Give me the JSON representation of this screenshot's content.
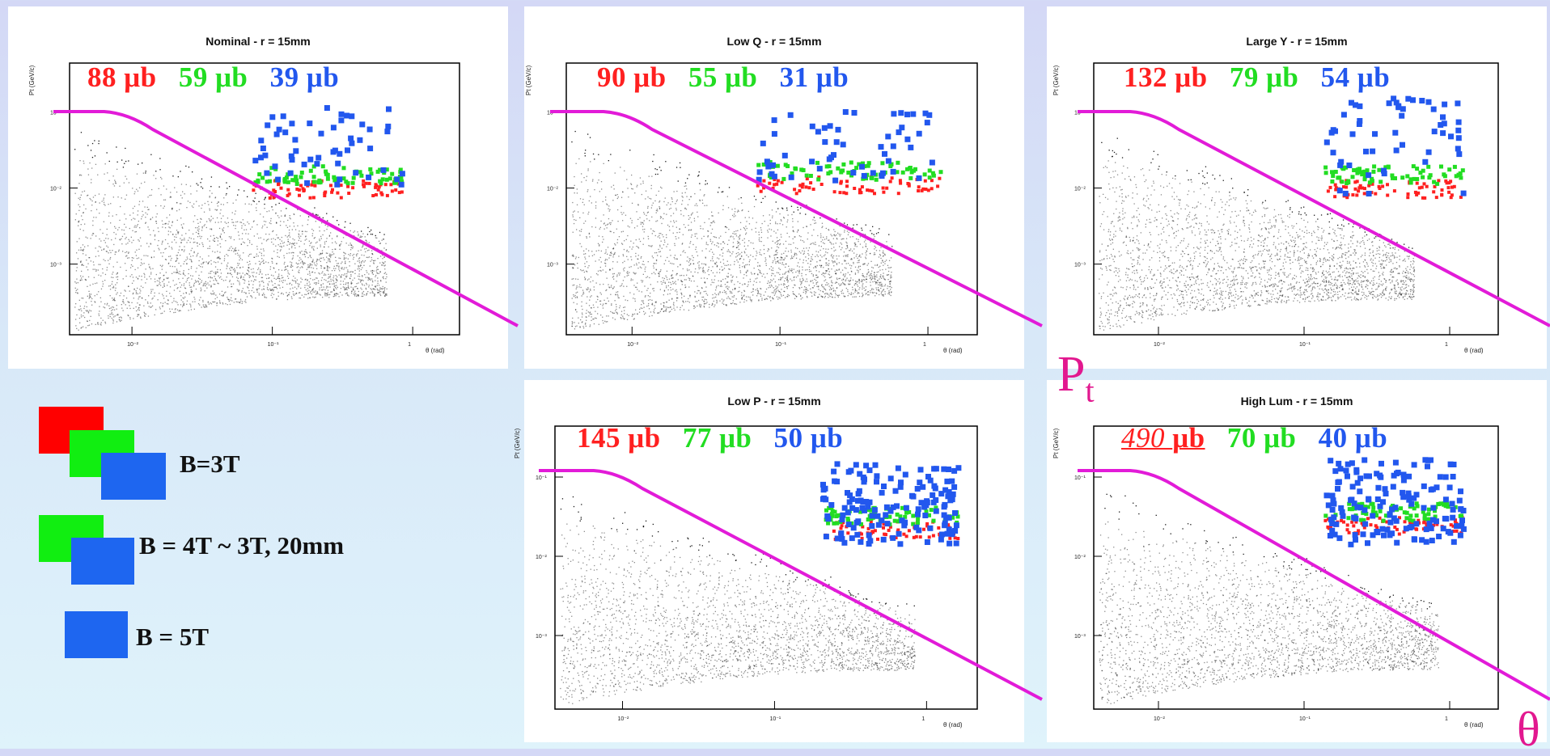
{
  "colors": {
    "red": "#ff2020",
    "green": "#22dd22",
    "blue": "#2257ee",
    "magenta": "#e21bd8",
    "label_magenta": "#e2188f"
  },
  "chart_data": [
    {
      "type": "scatter",
      "title": "Nominal - r = 15mm",
      "xlabel": "θ (rad)",
      "ylabel": "Pt (GeV/c)",
      "log_x": true,
      "log_y": true,
      "cross_sections": {
        "red": "88",
        "green": "59",
        "blue": "39",
        "unit": "μb"
      }
    },
    {
      "type": "scatter",
      "title": "Low Q - r = 15mm",
      "xlabel": "θ (rad)",
      "ylabel": "Pt (GeV/c)",
      "log_x": true,
      "log_y": true,
      "cross_sections": {
        "red": "90",
        "green": "55",
        "blue": "31",
        "unit": "μb"
      }
    },
    {
      "type": "scatter",
      "title": "Large Y - r = 15mm",
      "xlabel": "θ (rad)",
      "ylabel": "Pt (GeV/c)",
      "log_x": true,
      "log_y": true,
      "cross_sections": {
        "red": "132",
        "green": "79",
        "blue": "54",
        "unit": "μb"
      }
    },
    {
      "type": "scatter",
      "title": "Low P - r = 15mm",
      "xlabel": "θ (rad)",
      "ylabel": "Pt (GeV/c)",
      "log_x": true,
      "log_y": true,
      "cross_sections": {
        "red": "145",
        "green": "77",
        "blue": "50",
        "unit": "μb"
      }
    },
    {
      "type": "scatter",
      "title": "High Lum - r = 15mm",
      "xlabel": "θ (rad)",
      "ylabel": "Pt (GeV/c)",
      "log_x": true,
      "log_y": true,
      "cross_sections": {
        "red": "490",
        "green": "70",
        "blue": "40",
        "unit": "μb"
      }
    }
  ],
  "legend": {
    "b3": "B=3T",
    "b4": "B = 4T ~ 3T, 20mm",
    "b5": "B = 5T"
  },
  "side_labels": {
    "pt_main": "P",
    "pt_sub": "t",
    "theta": "θ"
  },
  "tick_labels": {
    "x": [
      "10⁻²",
      "10⁻¹",
      "1"
    ],
    "y": [
      "10⁻¹",
      "10⁻²",
      "10⁻³"
    ]
  }
}
